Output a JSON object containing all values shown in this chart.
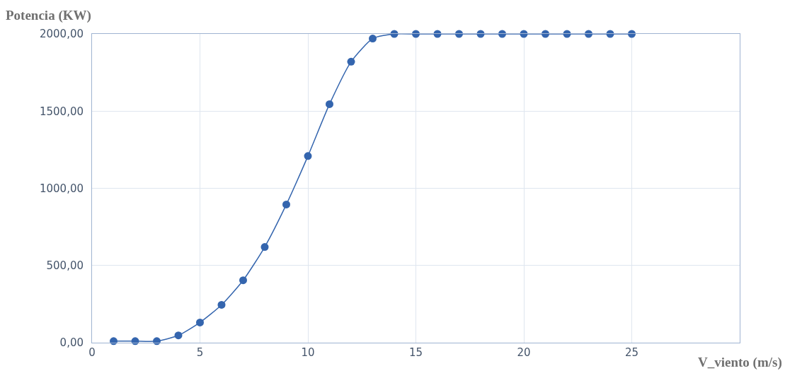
{
  "chart_data": {
    "type": "line",
    "xlabel": "V_viento (m/s)",
    "ylabel": "Potencia (KW)",
    "x": [
      1,
      2,
      3,
      4,
      5,
      6,
      7,
      8,
      9,
      10,
      11,
      12,
      13,
      14,
      15,
      16,
      17,
      18,
      19,
      20,
      21,
      22,
      23,
      24,
      25
    ],
    "series": [
      {
        "color": "#3465ae",
        "values": [
          10,
          10,
          10,
          47,
          131,
          245,
          404,
          620,
          895,
          1209,
          1545,
          1820,
          1970,
          2000,
          2000,
          2000,
          2000,
          2000,
          2000,
          2000,
          2000,
          2000,
          2000,
          2000,
          2000
        ]
      }
    ],
    "xlim": [
      0,
      30
    ],
    "xticks": [
      0,
      5,
      10,
      15,
      20,
      25
    ],
    "ylim": [
      0,
      2000
    ],
    "yticks": [
      {
        "value": 0,
        "label": "0,00"
      },
      {
        "value": 500,
        "label": "500,00"
      },
      {
        "value": 1000,
        "label": "1000,00"
      },
      {
        "value": 1500,
        "label": "1500,00"
      },
      {
        "value": 2000,
        "label": "2000,00"
      }
    ],
    "grid": true,
    "marker": "circle",
    "line_style": "solid"
  }
}
